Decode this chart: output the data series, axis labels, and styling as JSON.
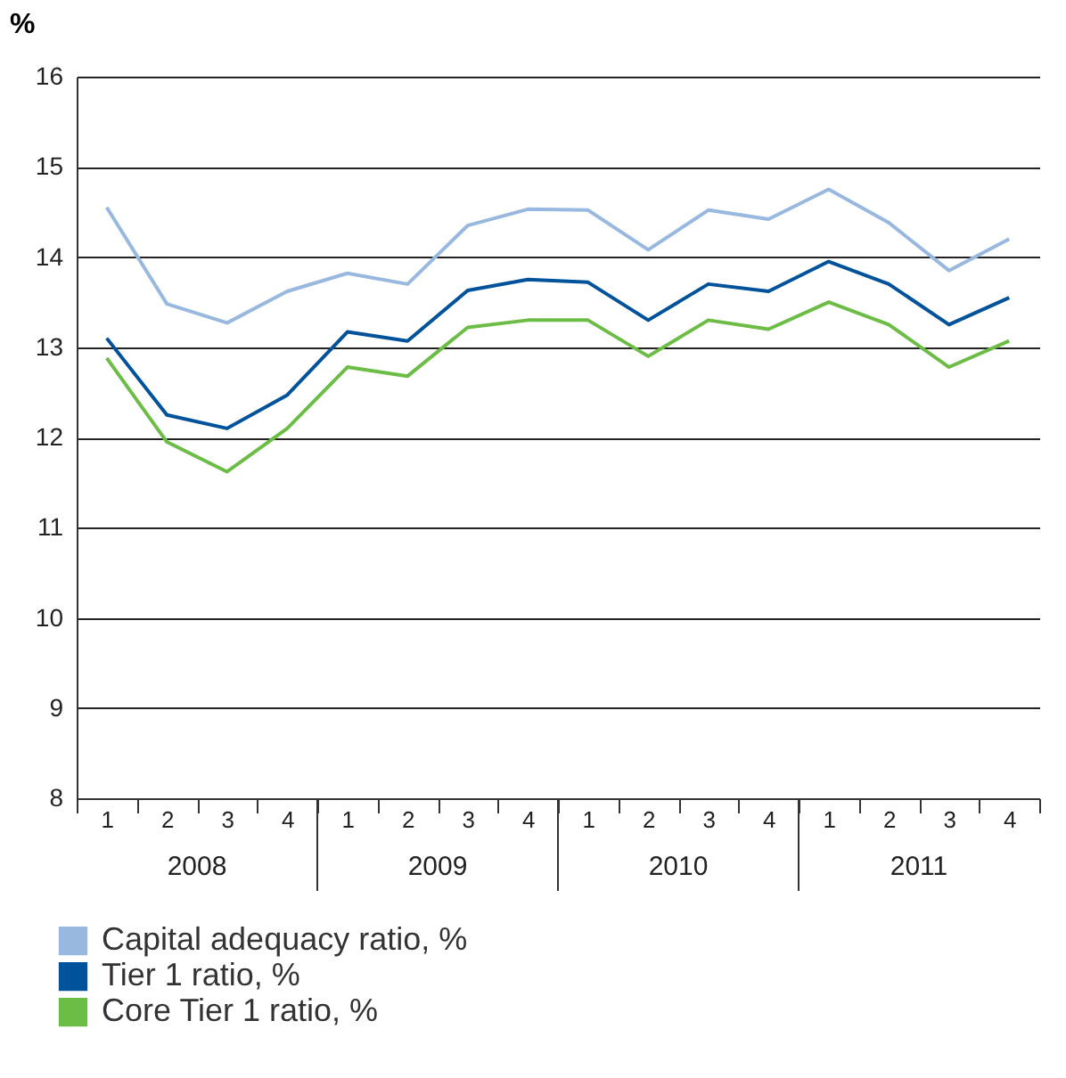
{
  "chart_data": {
    "type": "line",
    "ylabel": "%",
    "categories": [
      "1",
      "2",
      "3",
      "4",
      "1",
      "2",
      "3",
      "4",
      "1",
      "2",
      "3",
      "4",
      "1",
      "2",
      "3",
      "4"
    ],
    "annotations": [
      "2008",
      "2009",
      "2010",
      "2011"
    ],
    "series": [
      {
        "name": "Capital adequacy ratio, %",
        "color": "#98b8e0",
        "values": [
          14.55,
          13.48,
          13.27,
          13.62,
          13.82,
          13.7,
          14.35,
          14.53,
          14.52,
          14.08,
          14.52,
          14.42,
          14.75,
          14.38,
          13.85,
          14.2
        ]
      },
      {
        "name": "Tier 1 ratio, %",
        "color": "#00529b",
        "values": [
          13.1,
          12.25,
          12.1,
          12.47,
          13.17,
          13.07,
          13.63,
          13.75,
          13.72,
          13.3,
          13.7,
          13.62,
          13.95,
          13.7,
          13.25,
          13.55
        ]
      },
      {
        "name": "Core Tier 1 ratio, %",
        "color": "#6cbd45",
        "values": [
          12.88,
          11.95,
          11.62,
          12.1,
          12.78,
          12.68,
          13.22,
          13.3,
          13.3,
          12.9,
          13.3,
          13.2,
          13.5,
          13.25,
          12.78,
          13.07
        ]
      }
    ],
    "ylim": [
      8,
      16
    ],
    "yticks": [
      8,
      9,
      10,
      11,
      12,
      13,
      14,
      15,
      16
    ],
    "grid": "y",
    "legend": "bottom left",
    "marker": "none",
    "line_style": "solid"
  }
}
